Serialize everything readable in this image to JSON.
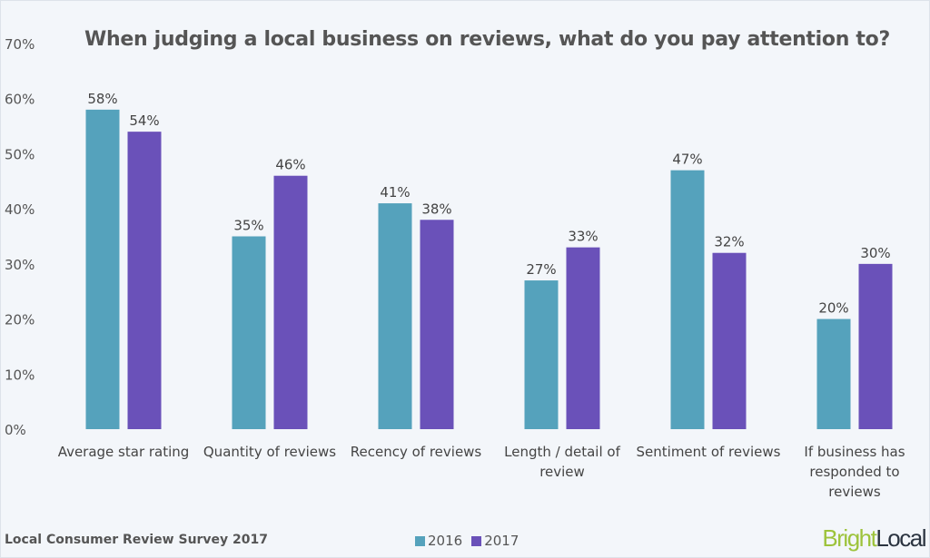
{
  "chart_data": {
    "type": "bar",
    "title": "When judging a local business on reviews, what do you pay attention to?",
    "categories": [
      [
        "Average star rating"
      ],
      [
        "Quantity of reviews"
      ],
      [
        "Recency of reviews"
      ],
      [
        "Length / detail of",
        "review"
      ],
      [
        "Sentiment of reviews"
      ],
      [
        "If business has",
        "responded to",
        "reviews"
      ]
    ],
    "series": [
      {
        "name": "2016",
        "color": "#55a2bc",
        "values": [
          58,
          35,
          41,
          27,
          47,
          20
        ]
      },
      {
        "name": "2017",
        "color": "#6a51b9",
        "values": [
          54,
          46,
          38,
          33,
          32,
          30
        ]
      }
    ],
    "data_label_suffix": "%",
    "yticks": [
      "0%",
      "10%",
      "20%",
      "30%",
      "40%",
      "50%",
      "60%",
      "70%"
    ],
    "ylim": [
      0,
      70
    ],
    "grid": false,
    "legend": "bottom-center"
  },
  "footer": {
    "source": "Local Consumer Review Survey 2017"
  },
  "logo": {
    "part1": "Bright",
    "part2": "Local"
  }
}
